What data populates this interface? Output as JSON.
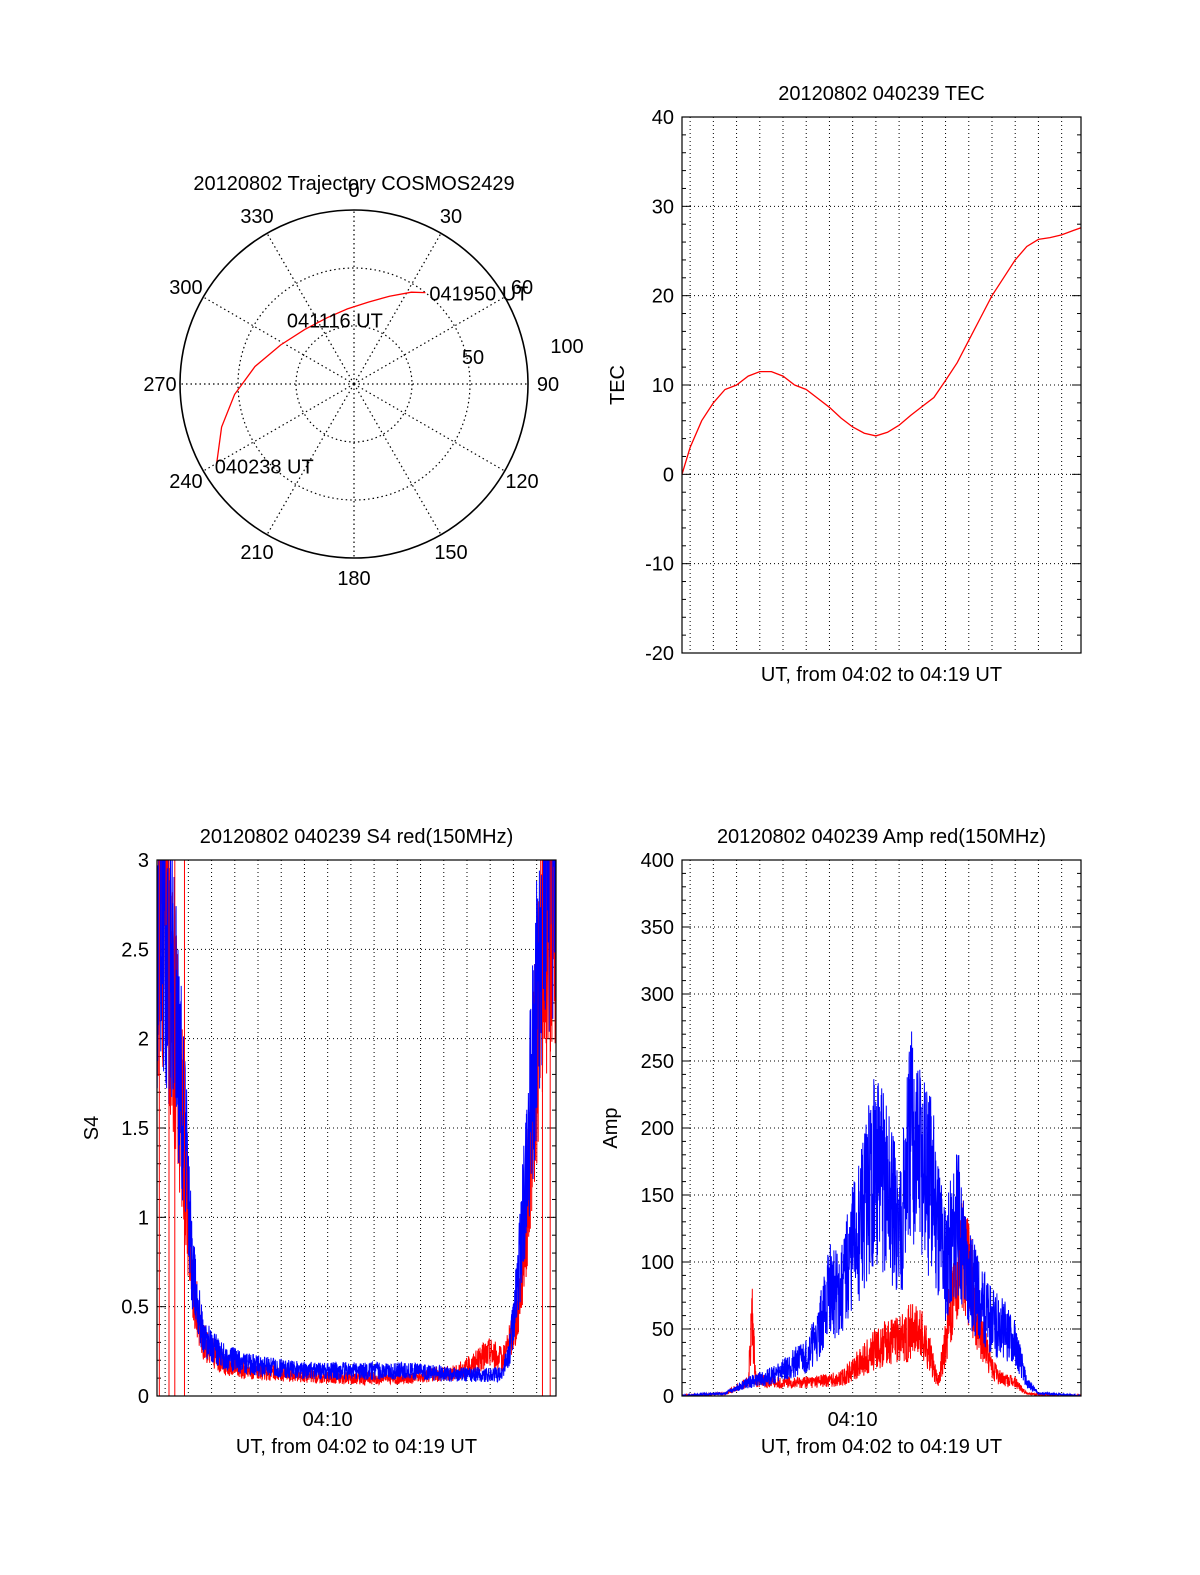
{
  "colors": {
    "red": "#ff0000",
    "blue": "#0000ff",
    "axis": "#000000",
    "background": "#ffffff"
  },
  "chart_data": [
    {
      "type": "polar",
      "title": "20120802 Trajectory COSMOS2429",
      "azimuth_labels": [
        "0",
        "30",
        "60",
        "90",
        "120",
        "150",
        "180",
        "210",
        "240",
        "270",
        "300",
        "330"
      ],
      "radial_labels": [
        "50",
        "100"
      ],
      "rmax": 90,
      "series": [
        {
          "color": "#ff0000",
          "points_az_el": [
            [
              240,
              8
            ],
            [
              252,
              18
            ],
            [
              265,
              28
            ],
            [
              280,
              38
            ],
            [
              298,
              47
            ],
            [
              318,
              52
            ],
            [
              338,
              53
            ],
            [
              355,
              51
            ],
            [
              10,
              47
            ],
            [
              22,
              41
            ],
            [
              32,
              34
            ],
            [
              38,
              30
            ]
          ]
        }
      ],
      "annotations": [
        {
          "text": "040238 UT",
          "az": 240,
          "el": 8
        },
        {
          "text": "041116 UT",
          "az": 318,
          "el": 52
        },
        {
          "text": "041950 UT",
          "az": 38,
          "el": 30
        }
      ]
    },
    {
      "type": "line",
      "title": "20120802 040239 TEC",
      "xlabel": "UT, from 04:02 to 04:19 UT",
      "ylabel": "TEC",
      "xlim": [
        "04:02:39",
        "04:19:50"
      ],
      "ylim": [
        -20,
        40
      ],
      "yticks": [
        "-20",
        "-10",
        "0",
        "10",
        "20",
        "30",
        "40"
      ],
      "xticks": [],
      "grid": true,
      "series": [
        {
          "color": "#ff0000",
          "x": [
            "04:02:39",
            "04:03:00",
            "04:03:30",
            "04:04:00",
            "04:04:30",
            "04:05:00",
            "04:05:30",
            "04:06:00",
            "04:06:30",
            "04:07:00",
            "04:07:30",
            "04:08:00",
            "04:08:30",
            "04:09:00",
            "04:09:30",
            "04:10:00",
            "04:10:30",
            "04:11:00",
            "04:11:30",
            "04:12:00",
            "04:12:30",
            "04:13:00",
            "04:13:30",
            "04:14:00",
            "04:14:30",
            "04:15:00",
            "04:15:30",
            "04:16:00",
            "04:16:30",
            "04:17:00",
            "04:17:30",
            "04:18:00",
            "04:18:30",
            "04:19:00",
            "04:19:30",
            "04:19:50"
          ],
          "y": [
            0,
            3,
            6,
            8,
            9.5,
            10,
            11,
            11.5,
            11.5,
            11,
            10,
            9.5,
            8.5,
            7.5,
            6.3,
            5.3,
            4.6,
            4.3,
            4.7,
            5.5,
            6.6,
            7.6,
            8.6,
            10.5,
            12.5,
            15,
            17.5,
            20,
            22,
            24,
            25.5,
            26.3,
            26.5,
            26.8,
            27.3,
            27.6
          ]
        }
      ]
    },
    {
      "type": "line",
      "title": "20120802 040239 S4 red(150MHz)",
      "xlabel": "UT, from 04:02 to 04:19 UT",
      "ylabel": "S4",
      "xlim": [
        "04:02:39",
        "04:19:50"
      ],
      "ylim": [
        0,
        3
      ],
      "yticks": [
        "0",
        "0.5",
        "1",
        "1.5",
        "2",
        "2.5",
        "3"
      ],
      "xticks": [
        "04:10"
      ],
      "grid": true,
      "series": [
        {
          "color": "#ff0000",
          "x": [
            "04:02:39",
            "04:02:50",
            "04:03:05",
            "04:03:20",
            "04:03:35",
            "04:03:50",
            "04:04:10",
            "04:04:40",
            "04:05:30",
            "04:06:30",
            "04:07:30",
            "04:08:30",
            "04:09:30",
            "04:10:30",
            "04:11:30",
            "04:12:30",
            "04:13:30",
            "04:14:30",
            "04:15:30",
            "04:16:00",
            "04:16:30",
            "04:17:00",
            "04:17:30",
            "04:17:50",
            "04:18:10",
            "04:18:25",
            "04:18:40",
            "04:18:55",
            "04:19:10",
            "04:19:25",
            "04:19:40",
            "04:19:50"
          ],
          "y": [
            2.6,
            2.9,
            2.4,
            2.2,
            1.8,
            1.4,
            0.6,
            0.3,
            0.18,
            0.14,
            0.13,
            0.12,
            0.11,
            0.1,
            0.1,
            0.1,
            0.1,
            0.12,
            0.13,
            0.16,
            0.2,
            0.25,
            0.2,
            0.3,
            0.45,
            0.8,
            1.2,
            1.8,
            2.3,
            2.7,
            3,
            3
          ]
        },
        {
          "color": "#0000ff",
          "x": [
            "04:02:39",
            "04:02:50",
            "04:03:05",
            "04:03:20",
            "04:03:35",
            "04:03:50",
            "04:04:10",
            "04:04:40",
            "04:05:30",
            "04:06:30",
            "04:07:30",
            "04:08:30",
            "04:09:30",
            "04:10:30",
            "04:11:30",
            "04:12:30",
            "04:13:30",
            "04:14:30",
            "04:15:30",
            "04:16:00",
            "04:16:30",
            "04:17:00",
            "04:17:30",
            "04:17:50",
            "04:18:10",
            "04:18:25",
            "04:18:40",
            "04:18:55",
            "04:19:10",
            "04:19:25",
            "04:19:40",
            "04:19:50"
          ],
          "y": [
            2.5,
            2.8,
            2.5,
            2.3,
            1.9,
            1.5,
            0.7,
            0.32,
            0.22,
            0.18,
            0.16,
            0.15,
            0.14,
            0.14,
            0.14,
            0.14,
            0.14,
            0.13,
            0.12,
            0.12,
            0.12,
            0.12,
            0.12,
            0.25,
            0.6,
            1.0,
            1.5,
            2.0,
            2.6,
            2.9,
            3,
            3
          ]
        }
      ]
    },
    {
      "type": "line",
      "title": "20120802 040239 Amp red(150MHz)",
      "xlabel": "UT, from 04:02 to 04:19 UT",
      "ylabel": "Amp",
      "xlim": [
        "04:02:39",
        "04:19:50"
      ],
      "ylim": [
        0,
        400
      ],
      "yticks": [
        "0",
        "50",
        "100",
        "150",
        "200",
        "250",
        "300",
        "350",
        "400"
      ],
      "xticks": [
        "04:10"
      ],
      "grid": true,
      "series": [
        {
          "color": "#ff0000",
          "x": [
            "04:02:39",
            "04:03:30",
            "04:04:30",
            "04:05:30",
            "04:05:40",
            "04:05:50",
            "04:06:30",
            "04:07:30",
            "04:08:30",
            "04:09:30",
            "04:10:00",
            "04:10:30",
            "04:11:00",
            "04:11:30",
            "04:12:00",
            "04:12:30",
            "04:13:00",
            "04:13:20",
            "04:13:40",
            "04:14:00",
            "04:14:20",
            "04:14:40",
            "04:15:00",
            "04:15:30",
            "04:16:00",
            "04:16:30",
            "04:17:00",
            "04:17:30",
            "04:18:00",
            "04:19:00",
            "04:19:50"
          ],
          "y": [
            0,
            1,
            2,
            10,
            60,
            12,
            10,
            10,
            11,
            13,
            20,
            28,
            35,
            40,
            42,
            48,
            45,
            30,
            10,
            40,
            80,
            120,
            90,
            50,
            20,
            12,
            10,
            2,
            1,
            0,
            0
          ]
        },
        {
          "color": "#0000ff",
          "x": [
            "04:02:39",
            "04:03:30",
            "04:04:30",
            "04:05:30",
            "04:06:30",
            "04:07:30",
            "04:08:00",
            "04:08:30",
            "04:09:00",
            "04:09:30",
            "04:10:00",
            "04:10:30",
            "04:11:00",
            "04:11:30",
            "04:12:00",
            "04:12:30",
            "04:13:00",
            "04:13:30",
            "04:14:00",
            "04:14:30",
            "04:15:00",
            "04:15:30",
            "04:16:00",
            "04:16:30",
            "04:17:00",
            "04:17:30",
            "04:18:00",
            "04:19:00",
            "04:19:50"
          ],
          "y": [
            0,
            1,
            2,
            10,
            15,
            25,
            30,
            45,
            80,
            75,
            110,
            140,
            170,
            150,
            120,
            190,
            170,
            150,
            100,
            130,
            90,
            70,
            55,
            50,
            40,
            10,
            2,
            1,
            0
          ]
        }
      ]
    }
  ]
}
